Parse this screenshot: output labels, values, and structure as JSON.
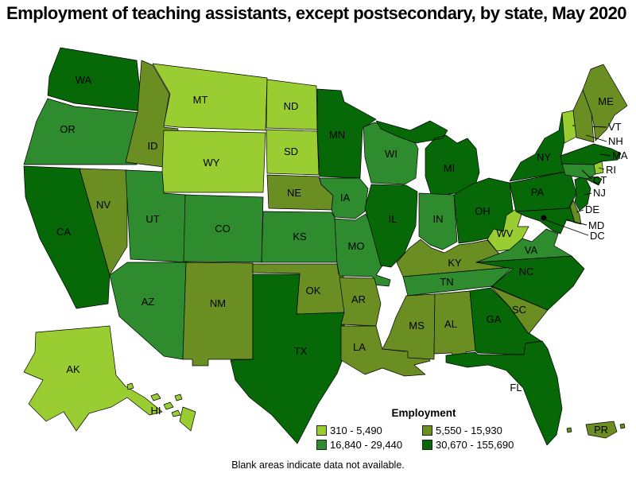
{
  "title": "Employment of teaching assistants, except postsecondary, by state, May 2020",
  "legend": {
    "title": "Employment"
  },
  "footnote": "Blank areas indicate data not available.",
  "chart_data": {
    "type": "heatmap",
    "subtype": "choropleth-us-states",
    "title": "Employment of teaching assistants, except postsecondary, by state, May 2020",
    "legend_title": "Employment",
    "note": "Blank areas indicate data not available.",
    "classes": [
      {
        "range": "310 - 5,490",
        "color": "#9ACD32"
      },
      {
        "range": "5,550 - 15,930",
        "color": "#6B8E23"
      },
      {
        "range": "16,840 - 29,440",
        "color": "#2E8B2E"
      },
      {
        "range": "30,670 - 155,690",
        "color": "#066806"
      }
    ],
    "states": [
      {
        "abbr": "WA",
        "class": 3
      },
      {
        "abbr": "OR",
        "class": 2
      },
      {
        "abbr": "CA",
        "class": 3
      },
      {
        "abbr": "NV",
        "class": 1
      },
      {
        "abbr": "ID",
        "class": 1
      },
      {
        "abbr": "MT",
        "class": 0
      },
      {
        "abbr": "WY",
        "class": 0
      },
      {
        "abbr": "UT",
        "class": 2
      },
      {
        "abbr": "CO",
        "class": 2
      },
      {
        "abbr": "AZ",
        "class": 2
      },
      {
        "abbr": "NM",
        "class": 1
      },
      {
        "abbr": "ND",
        "class": 0
      },
      {
        "abbr": "SD",
        "class": 0
      },
      {
        "abbr": "NE",
        "class": 1
      },
      {
        "abbr": "KS",
        "class": 2
      },
      {
        "abbr": "OK",
        "class": 1
      },
      {
        "abbr": "TX",
        "class": 3
      },
      {
        "abbr": "MN",
        "class": 3
      },
      {
        "abbr": "IA",
        "class": 2
      },
      {
        "abbr": "MO",
        "class": 2
      },
      {
        "abbr": "AR",
        "class": 1
      },
      {
        "abbr": "LA",
        "class": 1
      },
      {
        "abbr": "WI",
        "class": 2
      },
      {
        "abbr": "IL",
        "class": 3
      },
      {
        "abbr": "MI",
        "class": 3
      },
      {
        "abbr": "IN",
        "class": 2
      },
      {
        "abbr": "OH",
        "class": 3
      },
      {
        "abbr": "KY",
        "class": 1
      },
      {
        "abbr": "TN",
        "class": 2
      },
      {
        "abbr": "MS",
        "class": 1
      },
      {
        "abbr": "AL",
        "class": 1
      },
      {
        "abbr": "GA",
        "class": 3
      },
      {
        "abbr": "FL",
        "class": 3
      },
      {
        "abbr": "SC",
        "class": 1
      },
      {
        "abbr": "NC",
        "class": 3
      },
      {
        "abbr": "VA",
        "class": 2
      },
      {
        "abbr": "WV",
        "class": 0
      },
      {
        "abbr": "PA",
        "class": 3
      },
      {
        "abbr": "NY",
        "class": 3
      },
      {
        "abbr": "NJ",
        "class": 3
      },
      {
        "abbr": "ME",
        "class": 1
      },
      {
        "abbr": "VT",
        "class": 0
      },
      {
        "abbr": "NH",
        "class": 1
      },
      {
        "abbr": "MA",
        "class": 3
      },
      {
        "abbr": "RI",
        "class": 0
      },
      {
        "abbr": "CT",
        "class": 2
      },
      {
        "abbr": "DE",
        "class": 1
      },
      {
        "abbr": "MD",
        "class": 3
      },
      {
        "abbr": "DC",
        "class": null
      },
      {
        "abbr": "AK",
        "class": 0
      },
      {
        "abbr": "HI",
        "class": 0
      },
      {
        "abbr": "PR",
        "class": 1
      }
    ]
  }
}
